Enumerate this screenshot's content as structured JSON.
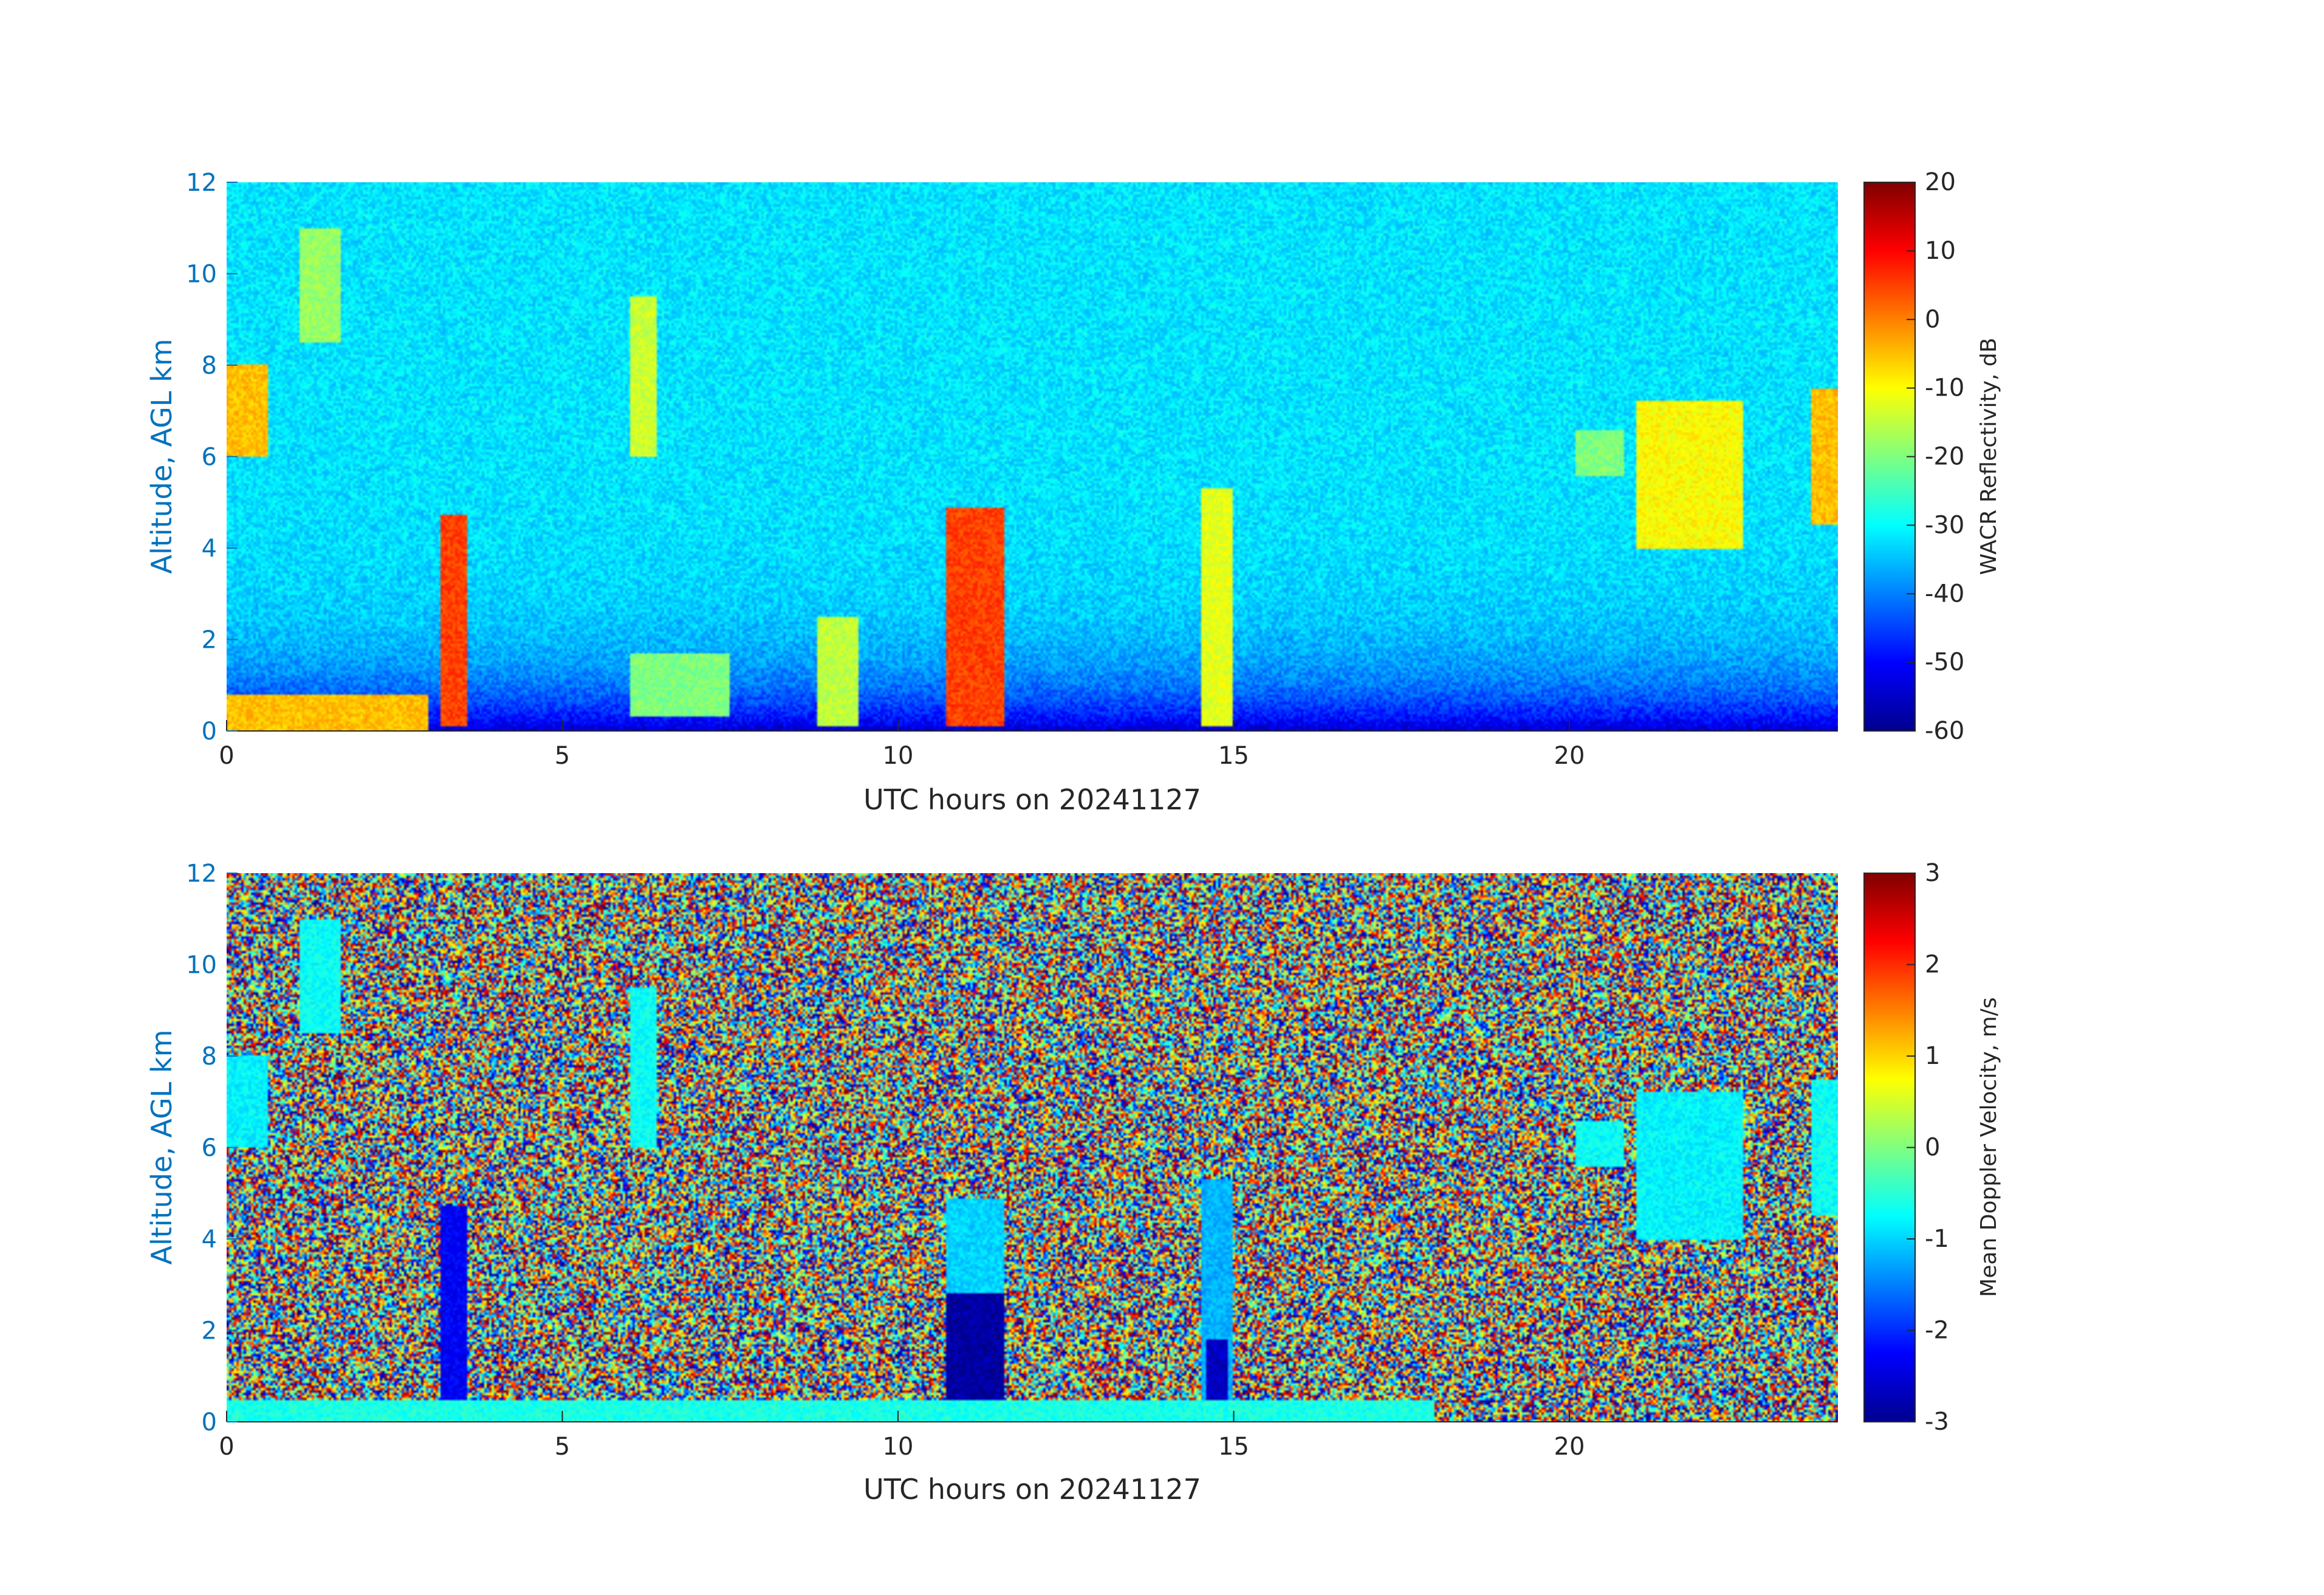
{
  "figure": {
    "date": "20241127"
  },
  "chart_data": [
    {
      "type": "heatmap",
      "title": "",
      "xlabel": "UTC hours on 20241127",
      "ylabel": "Altitude, AGL km",
      "xlim": [
        0,
        24
      ],
      "ylim": [
        0,
        12
      ],
      "xticks": [
        0,
        5,
        10,
        15,
        20
      ],
      "yticks": [
        0,
        2,
        4,
        6,
        8,
        10,
        12
      ],
      "grid": false,
      "colormap": "jet",
      "colorbar": {
        "label": "WACR Reflectivity, dB",
        "range": [
          -60,
          20
        ],
        "ticks": [
          20,
          10,
          0,
          -10,
          -20,
          -30,
          -40,
          -50,
          -60
        ]
      },
      "background_value": -32,
      "features": [
        {
          "x": [
            3.2,
            3.6
          ],
          "y": [
            0.1,
            4.7
          ],
          "value": 5,
          "note": "convective column"
        },
        {
          "x": [
            10.7,
            11.6
          ],
          "y": [
            0.1,
            4.9
          ],
          "value": 5,
          "note": "convective column"
        },
        {
          "x": [
            14.5,
            15.0
          ],
          "y": [
            0.1,
            5.3
          ],
          "value": -12
        },
        {
          "x": [
            6.0,
            6.4
          ],
          "y": [
            6.0,
            9.5
          ],
          "value": -14
        },
        {
          "x": [
            1.1,
            1.7
          ],
          "y": [
            8.5,
            11.0
          ],
          "value": -18
        },
        {
          "x": [
            0.0,
            0.6
          ],
          "y": [
            6.0,
            8.0
          ],
          "value": -5
        },
        {
          "x": [
            21.0,
            22.6
          ],
          "y": [
            4.0,
            7.2
          ],
          "value": -10
        },
        {
          "x": [
            20.1,
            20.8
          ],
          "y": [
            5.6,
            6.6
          ],
          "value": -20
        },
        {
          "x": [
            23.6,
            24.0
          ],
          "y": [
            4.5,
            7.5
          ],
          "value": -5
        },
        {
          "x": [
            8.8,
            9.4
          ],
          "y": [
            0.1,
            2.5
          ],
          "value": -15
        },
        {
          "x": [
            0.0,
            3.0
          ],
          "y": [
            0.0,
            0.8
          ],
          "value": -5,
          "note": "low-level echo"
        },
        {
          "x": [
            6.0,
            7.5
          ],
          "y": [
            0.3,
            1.7
          ],
          "value": -20
        }
      ]
    },
    {
      "type": "heatmap",
      "title": "",
      "xlabel": "UTC hours on 20241127",
      "ylabel": "Altitude, AGL km",
      "xlim": [
        0,
        24
      ],
      "ylim": [
        0,
        12
      ],
      "xticks": [
        0,
        5,
        10,
        15,
        20
      ],
      "yticks": [
        0,
        2,
        4,
        6,
        8,
        10,
        12
      ],
      "grid": false,
      "colormap": "jet",
      "colorbar": {
        "label": "Mean Doppler Velocity, m/s",
        "range": [
          -3,
          3
        ],
        "ticks": [
          3,
          2,
          1,
          0,
          -1,
          -2,
          -3
        ]
      },
      "background": "random noise",
      "features": [
        {
          "x": [
            3.2,
            3.6
          ],
          "y": [
            0.1,
            4.7
          ],
          "value": -2.3
        },
        {
          "x": [
            10.7,
            11.6
          ],
          "y": [
            0.1,
            2.8
          ],
          "value": -2.8
        },
        {
          "x": [
            10.7,
            11.6
          ],
          "y": [
            2.8,
            4.9
          ],
          "value": -1.0
        },
        {
          "x": [
            14.5,
            15.0
          ],
          "y": [
            0.1,
            5.3
          ],
          "value": -1.2
        },
        {
          "x": [
            14.6,
            14.9
          ],
          "y": [
            0.1,
            1.8
          ],
          "value": -2.6
        },
        {
          "x": [
            6.0,
            6.4
          ],
          "y": [
            6.0,
            9.5
          ],
          "value": -0.7
        },
        {
          "x": [
            1.1,
            1.7
          ],
          "y": [
            8.5,
            11.0
          ],
          "value": -0.7
        },
        {
          "x": [
            0.0,
            0.6
          ],
          "y": [
            6.0,
            8.0
          ],
          "value": -0.8
        },
        {
          "x": [
            21.0,
            22.6
          ],
          "y": [
            4.0,
            7.2
          ],
          "value": -0.8
        },
        {
          "x": [
            20.1,
            20.8
          ],
          "y": [
            5.6,
            6.6
          ],
          "value": -0.7
        },
        {
          "x": [
            23.6,
            24.0
          ],
          "y": [
            4.5,
            7.5
          ],
          "value": -0.7
        },
        {
          "x": [
            0.0,
            18.0
          ],
          "y": [
            0.0,
            0.5
          ],
          "value": -0.6,
          "note": "low-level layer"
        }
      ]
    }
  ]
}
